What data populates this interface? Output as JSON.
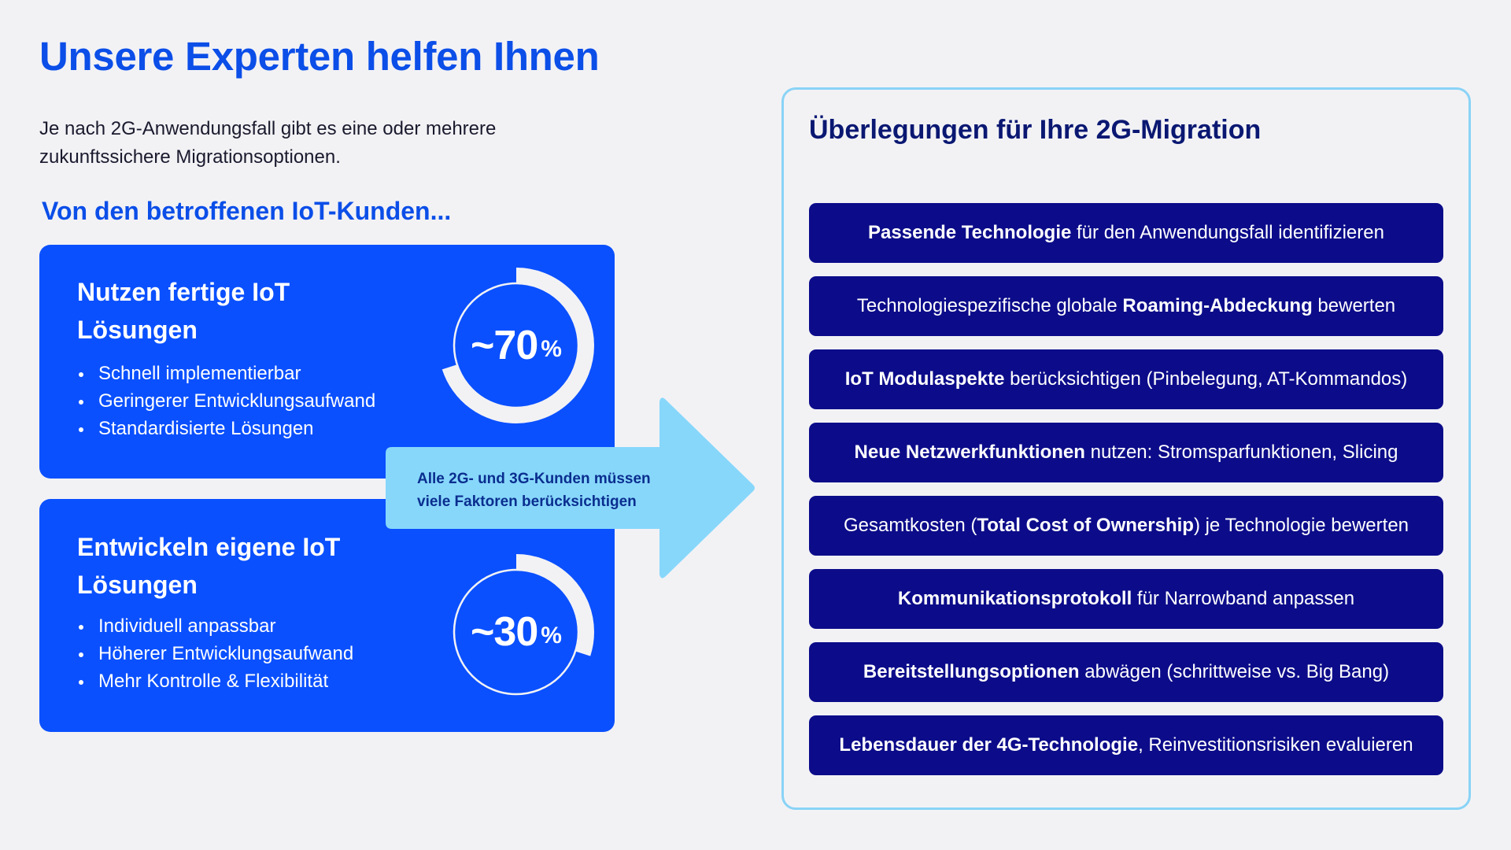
{
  "title": "Unsere Experten helfen Ihnen",
  "intro": "Je nach 2G-Anwendungsfall gibt es eine oder mehrere zukunftssichere Migrationsoptionen.",
  "subtitle": "Von den betroffenen IoT-Kunden...",
  "cards": [
    {
      "title": "Nutzen fertige IoT Lösungen",
      "bullets": [
        "Schnell implementierbar",
        "Geringerer Entwicklungsaufwand",
        "Standardisierte Lösungen"
      ],
      "value": "~70",
      "unit": "%",
      "fraction": 0.7
    },
    {
      "title": "Entwickeln eigene IoT Lösungen",
      "bullets": [
        "Individuell anpassbar",
        "Höherer Entwicklungsaufwand",
        "Mehr Kontrolle & Flexibilität"
      ],
      "value": "~30",
      "unit": "%",
      "fraction": 0.3
    }
  ],
  "arrow_text": "Alle 2G- und 3G-Kunden müssen viele Faktoren berücksichtigen",
  "panel": {
    "title": "Überlegungen für Ihre 2G-Migration",
    "items": [
      {
        "bold_before": "Passende Technologie",
        "text": " für den Anwendungsfall identifizieren"
      },
      {
        "text_before": "Technologiespezifische globale ",
        "bold": "Roaming-Abdeckung",
        "text": " bewerten"
      },
      {
        "bold_before": "IoT Modulaspekte",
        "text": " berücksichtigen (Pinbelegung, AT-Kommandos)"
      },
      {
        "bold_before": "Neue Netzwerkfunktionen",
        "text": " nutzen: Stromsparfunktionen, Slicing"
      },
      {
        "text_before": "Gesamtkosten (",
        "bold": "Total Cost of Ownership",
        "text": ") je Technologie bewerten"
      },
      {
        "bold_before": "Kommunikationsprotokoll",
        "text": " für Narrowband anpassen"
      },
      {
        "bold_before": "Bereitstellungsoptionen",
        "text": " abwägen (schrittweise vs. Big Bang)"
      },
      {
        "bold_before": "Lebensdauer der 4G-Technologie",
        "text": ", Reinvestitionsrisiken evaluieren"
      }
    ]
  },
  "colors": {
    "brand_blue": "#0b4ee8",
    "card_blue": "#0a50ff",
    "navy": "#0c0c8a",
    "arrow_light_blue": "#87d7fb",
    "panel_border": "#8ad3f6",
    "background": "#f2f2f5"
  }
}
